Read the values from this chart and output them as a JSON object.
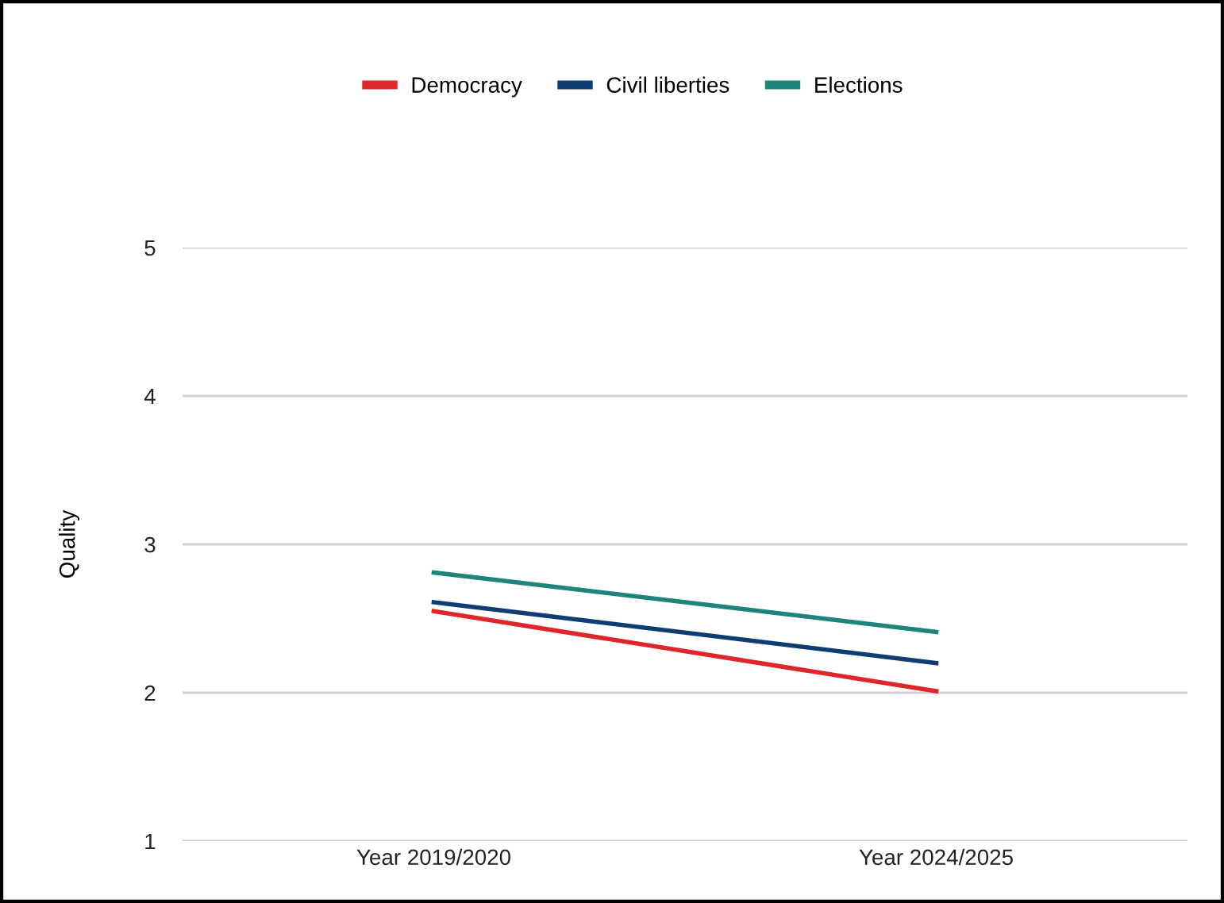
{
  "chart_data": {
    "type": "line",
    "ylabel": "Quality",
    "categories": [
      "Year 2019/2020",
      "Year 2024/2025"
    ],
    "series": [
      {
        "name": "Democracy",
        "color": "#e0262d",
        "values": [
          2.55,
          2.01
        ]
      },
      {
        "name": "Civil liberties",
        "color": "#0f3d73",
        "values": [
          2.61,
          2.2
        ]
      },
      {
        "name": "Elections",
        "color": "#1f857a",
        "values": [
          2.81,
          2.41
        ]
      }
    ],
    "ylim": [
      1,
      5
    ],
    "yticks": [
      1,
      2,
      3,
      4,
      5
    ],
    "grid": "y",
    "legend": "top",
    "marker": "none",
    "line_style": "solid"
  }
}
